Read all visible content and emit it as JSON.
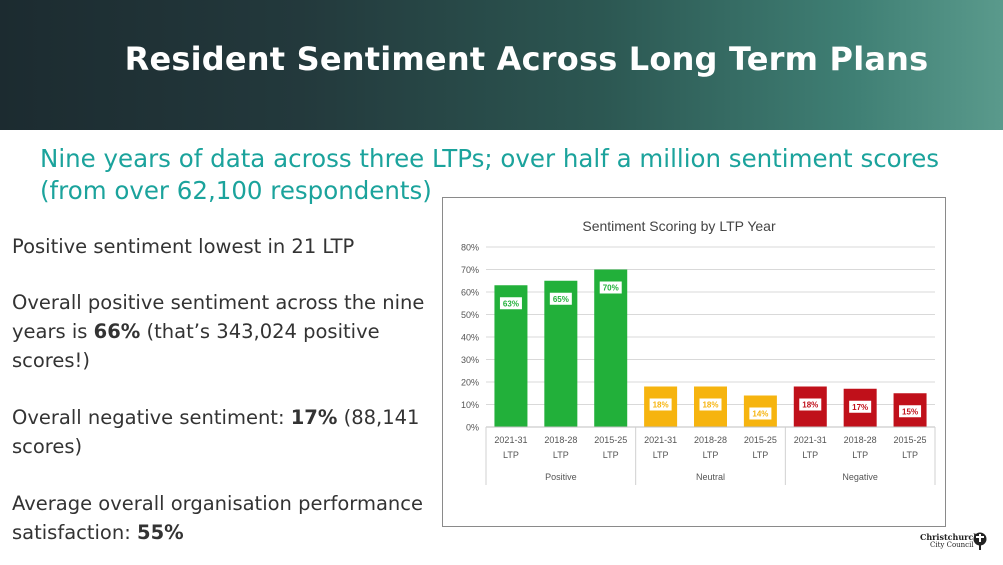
{
  "header": {
    "title": "Resident Sentiment Across Long Term Plans"
  },
  "subtitle": "Nine years of data across three LTPs; over half a million sentiment scores (from over 62,100 respondents)",
  "points": [
    {
      "pre": "Positive sentiment lowest in 21 LTP",
      "bold": "",
      "post": ""
    },
    {
      "pre": "Overall positive sentiment across the nine years is ",
      "bold": "66%",
      "post": " (that’s 343,024 positive scores!)"
    },
    {
      "pre": "Overall negative sentiment: ",
      "bold": "17%",
      "post": " (88,141 scores)"
    },
    {
      "pre": "Average overall organisation performance satisfaction: ",
      "bold": "55%",
      "post": ""
    }
  ],
  "logo": {
    "line1": "Christchurch",
    "line2": "City Council"
  },
  "chart_data": {
    "type": "bar",
    "title": "Sentiment Scoring by LTP Year",
    "ylim": [
      0,
      80
    ],
    "yticks": [
      0,
      10,
      20,
      30,
      40,
      50,
      60,
      70,
      80
    ],
    "ytick_labels": [
      "0%",
      "10%",
      "20%",
      "30%",
      "40%",
      "50%",
      "60%",
      "70%",
      "80%"
    ],
    "grid": true,
    "groups": [
      {
        "name": "Positive",
        "color": "#22b03a",
        "categories": [
          [
            "2021-31",
            "LTP"
          ],
          [
            "2018-28",
            "LTP"
          ],
          [
            "2015-25",
            "LTP"
          ]
        ],
        "values": [
          63,
          65,
          70
        ],
        "labels": [
          "63%",
          "65%",
          "70%"
        ]
      },
      {
        "name": "Neutral",
        "color": "#f6b40f",
        "categories": [
          [
            "2021-31",
            "LTP"
          ],
          [
            "2018-28",
            "LTP"
          ],
          [
            "2015-25",
            "LTP"
          ]
        ],
        "values": [
          18,
          18,
          14
        ],
        "labels": [
          "18%",
          "18%",
          "14%"
        ]
      },
      {
        "name": "Negative",
        "color": "#c0101a",
        "categories": [
          [
            "2021-31",
            "LTP"
          ],
          [
            "2018-28",
            "LTP"
          ],
          [
            "2015-25",
            "LTP"
          ]
        ],
        "values": [
          18,
          17,
          15
        ],
        "labels": [
          "18%",
          "17%",
          "15%"
        ]
      }
    ]
  }
}
